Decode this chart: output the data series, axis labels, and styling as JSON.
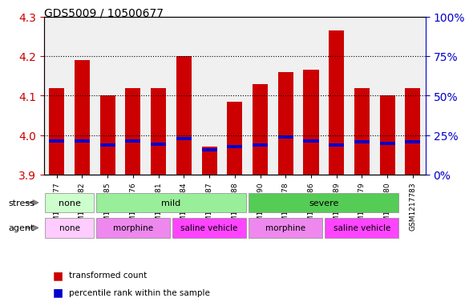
{
  "title": "GDS5009 / 10500677",
  "samples": [
    "GSM1217777",
    "GSM1217782",
    "GSM1217785",
    "GSM1217776",
    "GSM1217781",
    "GSM1217784",
    "GSM1217787",
    "GSM1217788",
    "GSM1217790",
    "GSM1217778",
    "GSM1217786",
    "GSM1217789",
    "GSM1217779",
    "GSM1217780",
    "GSM1217783"
  ],
  "transformed_counts": [
    4.12,
    4.19,
    4.1,
    4.12,
    4.12,
    4.2,
    3.97,
    4.085,
    4.13,
    4.16,
    4.165,
    4.265,
    4.12,
    4.1,
    4.12
  ],
  "percentile_values": [
    3.985,
    3.985,
    3.975,
    3.984,
    3.977,
    3.99,
    3.962,
    3.97,
    3.975,
    3.995,
    3.985,
    3.975,
    3.982,
    3.978,
    3.982
  ],
  "ylim": [
    3.9,
    4.3
  ],
  "yticks_left": [
    3.9,
    4.0,
    4.1,
    4.2,
    4.3
  ],
  "yticks_right_labels": [
    "0%",
    "25%",
    "50%",
    "75%",
    "100%"
  ],
  "yticks_right_values": [
    3.9,
    4.0,
    4.1,
    4.2,
    4.3
  ],
  "bar_color": "#cc0000",
  "percentile_color": "#0000cc",
  "bar_bottom": 3.9,
  "bar_width": 0.6,
  "stress_groups": [
    {
      "label": "none",
      "start": 0,
      "end": 2,
      "color": "#ccffcc"
    },
    {
      "label": "mild",
      "start": 2,
      "end": 8,
      "color": "#88ee88"
    },
    {
      "label": "severe",
      "start": 8,
      "end": 14,
      "color": "#44cc44"
    }
  ],
  "agent_groups": [
    {
      "label": "none",
      "start": 0,
      "end": 2,
      "color": "#ffccff"
    },
    {
      "label": "morphine",
      "start": 2,
      "end": 5,
      "color": "#ee88ee"
    },
    {
      "label": "saline vehicle",
      "start": 5,
      "end": 8,
      "color": "#ff88ff"
    },
    {
      "label": "morphine",
      "start": 8,
      "end": 11,
      "color": "#ee88ee"
    },
    {
      "label": "saline vehicle",
      "start": 11,
      "end": 14,
      "color": "#ff88ff"
    }
  ],
  "background_color": "#ffffff",
  "plot_bg_color": "#f0f0f0",
  "grid_color": "#000000",
  "title_color": "#000000",
  "left_axis_color": "#cc0000",
  "right_axis_color": "#0000cc"
}
